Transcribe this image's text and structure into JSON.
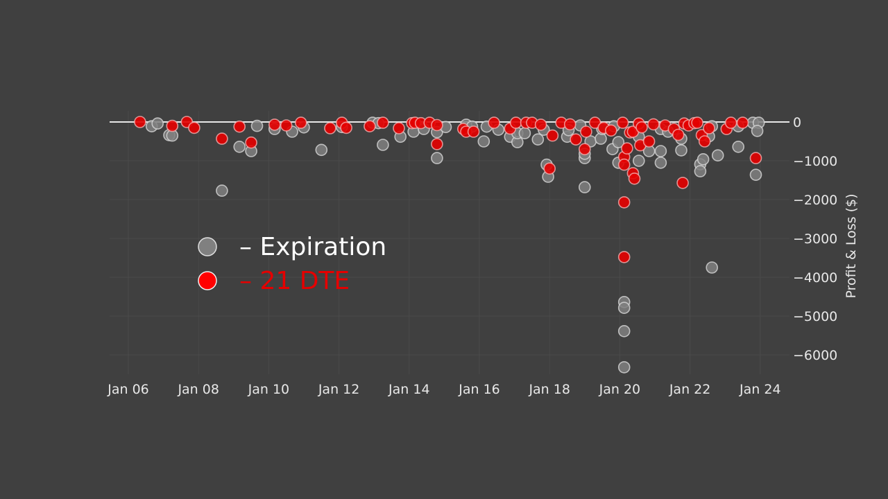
{
  "chart_data": {
    "type": "scatter",
    "title": "",
    "xlabel": "",
    "ylabel": "Profit & Loss ($)",
    "xlim": [
      "Jan 05 11:00",
      "Jan 24 20:00"
    ],
    "ylim": [
      -6500,
      300
    ],
    "x_ticks": [
      "Jan 06",
      "Jan 08",
      "Jan 10",
      "Jan 12",
      "Jan 14",
      "Jan 16",
      "Jan 18",
      "Jan 20",
      "Jan 22",
      "Jan 24"
    ],
    "y_ticks": [
      0,
      -1000,
      -2000,
      -3000,
      -4000,
      -5000,
      -6000
    ],
    "y_tick_labels": [
      "0",
      "−1000",
      "−2000",
      "−3000",
      "−4000",
      "−5000",
      "−6000"
    ],
    "grid": true,
    "zero_line": true,
    "legend_position": "center-left",
    "series": [
      {
        "name": "– Expiration",
        "color": "#808080",
        "points": [
          [
            "Jan 06 16:00",
            -110
          ],
          [
            "Jan 06 20:00",
            -40
          ],
          [
            "Jan 07 04:00",
            -340
          ],
          [
            "Jan 07 06:00",
            -350
          ],
          [
            "Jan 08 16:00",
            -1770
          ],
          [
            "Jan 09 04:00",
            -640
          ],
          [
            "Jan 09 12:00",
            -750
          ],
          [
            "Jan 09 16:00",
            -100
          ],
          [
            "Jan 10 04:00",
            -180
          ],
          [
            "Jan 10 16:00",
            -250
          ],
          [
            "Jan 11 00:00",
            -140
          ],
          [
            "Jan 11 12:00",
            -720
          ],
          [
            "Jan 12 02:00",
            -130
          ],
          [
            "Jan 12 23:00",
            -20
          ],
          [
            "Jan 13 03:00",
            -30
          ],
          [
            "Jan 13 06:00",
            -590
          ],
          [
            "Jan 13 18:00",
            -380
          ],
          [
            "Jan 14 03:00",
            -250
          ],
          [
            "Jan 14 10:00",
            -180
          ],
          [
            "Jan 14 19:00",
            -260
          ],
          [
            "Jan 14 19:00",
            -930
          ],
          [
            "Jan 15 01:00",
            -130
          ],
          [
            "Jan 15 15:00",
            -70
          ],
          [
            "Jan 15 19:00",
            -120
          ],
          [
            "Jan 16 03:00",
            -500
          ],
          [
            "Jan 16 05:00",
            -120
          ],
          [
            "Jan 16 13:00",
            -200
          ],
          [
            "Jan 16 21:00",
            -380
          ],
          [
            "Jan 17 02:00",
            -520
          ],
          [
            "Jan 17 02:00",
            -290
          ],
          [
            "Jan 17 07:00",
            -290
          ],
          [
            "Jan 17 16:00",
            -450
          ],
          [
            "Jan 17 20:00",
            -200
          ],
          [
            "Jan 17 22:00",
            -1100
          ],
          [
            "Jan 17 23:00",
            -1410
          ],
          [
            "Jan 18 12:00",
            -380
          ],
          [
            "Jan 18 13:00",
            -210
          ],
          [
            "Jan 18 21:00",
            -90
          ],
          [
            "Jan 19 00:00",
            -930
          ],
          [
            "Jan 19 00:00",
            -820
          ],
          [
            "Jan 19 00:00",
            -1680
          ],
          [
            "Jan 19 04:00",
            -500
          ],
          [
            "Jan 19 11:00",
            -430
          ],
          [
            "Jan 19 12:00",
            -180
          ],
          [
            "Jan 19 19:00",
            -700
          ],
          [
            "Jan 19 20:00",
            -110
          ],
          [
            "Jan 19 23:00",
            -1050
          ],
          [
            "Jan 19 23:00",
            -520
          ],
          [
            "Jan 20 03:00",
            -4640
          ],
          [
            "Jan 20 03:00",
            -4790
          ],
          [
            "Jan 20 03:00",
            -5390
          ],
          [
            "Jan 20 03:00",
            -6320
          ],
          [
            "Jan 20 13:00",
            -380
          ],
          [
            "Jan 20 13:00",
            -1000
          ],
          [
            "Jan 20 20:00",
            -750
          ],
          [
            "Jan 21 04:00",
            -180
          ],
          [
            "Jan 21 04:00",
            -750
          ],
          [
            "Jan 21 04:00",
            -1050
          ],
          [
            "Jan 21 09:00",
            -250
          ],
          [
            "Jan 21 18:00",
            -730
          ],
          [
            "Jan 21 18:00",
            -430
          ],
          [
            "Jan 22 07:00",
            -1090
          ],
          [
            "Jan 22 07:00",
            -1270
          ],
          [
            "Jan 22 09:00",
            -960
          ],
          [
            "Jan 22 13:00",
            -370
          ],
          [
            "Jan 22 15:00",
            -110
          ],
          [
            "Jan 22 15:00",
            -3750
          ],
          [
            "Jan 22 19:00",
            -860
          ],
          [
            "Jan 23 09:00",
            -640
          ],
          [
            "Jan 23 09:00",
            -110
          ],
          [
            "Jan 23 19:00",
            -20
          ],
          [
            "Jan 23 23:00",
            -20
          ],
          [
            "Jan 23 22:00",
            -230
          ],
          [
            "Jan 23 21:00",
            -1360
          ]
        ]
      },
      {
        "name": "– 21 DTE",
        "color": "#e50000",
        "points": [
          [
            "Jan 06 08:00",
            0
          ],
          [
            "Jan 07 06:00",
            -100
          ],
          [
            "Jan 07 16:00",
            0
          ],
          [
            "Jan 07 21:00",
            -150
          ],
          [
            "Jan 08 16:00",
            -430
          ],
          [
            "Jan 09 04:00",
            -120
          ],
          [
            "Jan 09 12:00",
            -530
          ],
          [
            "Jan 10 04:00",
            -70
          ],
          [
            "Jan 10 12:00",
            -90
          ],
          [
            "Jan 10 22:00",
            -20
          ],
          [
            "Jan 11 18:00",
            -160
          ],
          [
            "Jan 12 02:00",
            -20
          ],
          [
            "Jan 12 05:00",
            -150
          ],
          [
            "Jan 12 21:00",
            -110
          ],
          [
            "Jan 13 06:00",
            -20
          ],
          [
            "Jan 13 17:00",
            -160
          ],
          [
            "Jan 14 02:00",
            -30
          ],
          [
            "Jan 14 04:00",
            -20
          ],
          [
            "Jan 14 08:00",
            -30
          ],
          [
            "Jan 14 14:00",
            -20
          ],
          [
            "Jan 14 19:00",
            -570
          ],
          [
            "Jan 14 19:00",
            -80
          ],
          [
            "Jan 15 13:00",
            -180
          ],
          [
            "Jan 15 15:00",
            -250
          ],
          [
            "Jan 15 20:00",
            -250
          ],
          [
            "Jan 16 10:00",
            -20
          ],
          [
            "Jan 16 21:00",
            -170
          ],
          [
            "Jan 17 01:00",
            -20
          ],
          [
            "Jan 17 08:00",
            -20
          ],
          [
            "Jan 17 12:00",
            -20
          ],
          [
            "Jan 17 18:00",
            -70
          ],
          [
            "Jan 18 00:00",
            -1200
          ],
          [
            "Jan 18 02:00",
            -350
          ],
          [
            "Jan 18 08:00",
            -20
          ],
          [
            "Jan 18 14:00",
            -60
          ],
          [
            "Jan 18 18:00",
            -450
          ],
          [
            "Jan 19 00:00",
            -700
          ],
          [
            "Jan 19 01:00",
            -250
          ],
          [
            "Jan 19 07:00",
            -20
          ],
          [
            "Jan 19 13:00",
            -150
          ],
          [
            "Jan 19 18:00",
            -220
          ],
          [
            "Jan 20 02:00",
            -20
          ],
          [
            "Jan 20 03:00",
            -900
          ],
          [
            "Jan 20 03:00",
            -1100
          ],
          [
            "Jan 20 03:00",
            -2070
          ],
          [
            "Jan 20 03:00",
            -3480
          ],
          [
            "Jan 20 05:00",
            -680
          ],
          [
            "Jan 20 07:00",
            -270
          ],
          [
            "Jan 20 09:00",
            -250
          ],
          [
            "Jan 20 09:00",
            -1320
          ],
          [
            "Jan 20 10:00",
            -1460
          ],
          [
            "Jan 20 13:00",
            -40
          ],
          [
            "Jan 20 15:00",
            -140
          ],
          [
            "Jan 20 14:00",
            -600
          ],
          [
            "Jan 20 20:00",
            -500
          ],
          [
            "Jan 20 23:00",
            -60
          ],
          [
            "Jan 21 07:00",
            -90
          ],
          [
            "Jan 21 13:00",
            -180
          ],
          [
            "Jan 21 16:00",
            -330
          ],
          [
            "Jan 21 19:00",
            -1570
          ],
          [
            "Jan 21 20:00",
            -40
          ],
          [
            "Jan 21 23:00",
            -90
          ],
          [
            "Jan 22 03:00",
            -30
          ],
          [
            "Jan 22 05:00",
            -20
          ],
          [
            "Jan 22 08:00",
            -340
          ],
          [
            "Jan 22 10:00",
            -500
          ],
          [
            "Jan 22 13:00",
            -160
          ],
          [
            "Jan 23 01:00",
            -180
          ],
          [
            "Jan 23 04:00",
            -20
          ],
          [
            "Jan 23 12:00",
            -20
          ],
          [
            "Jan 23 21:00",
            -930
          ]
        ]
      }
    ]
  }
}
